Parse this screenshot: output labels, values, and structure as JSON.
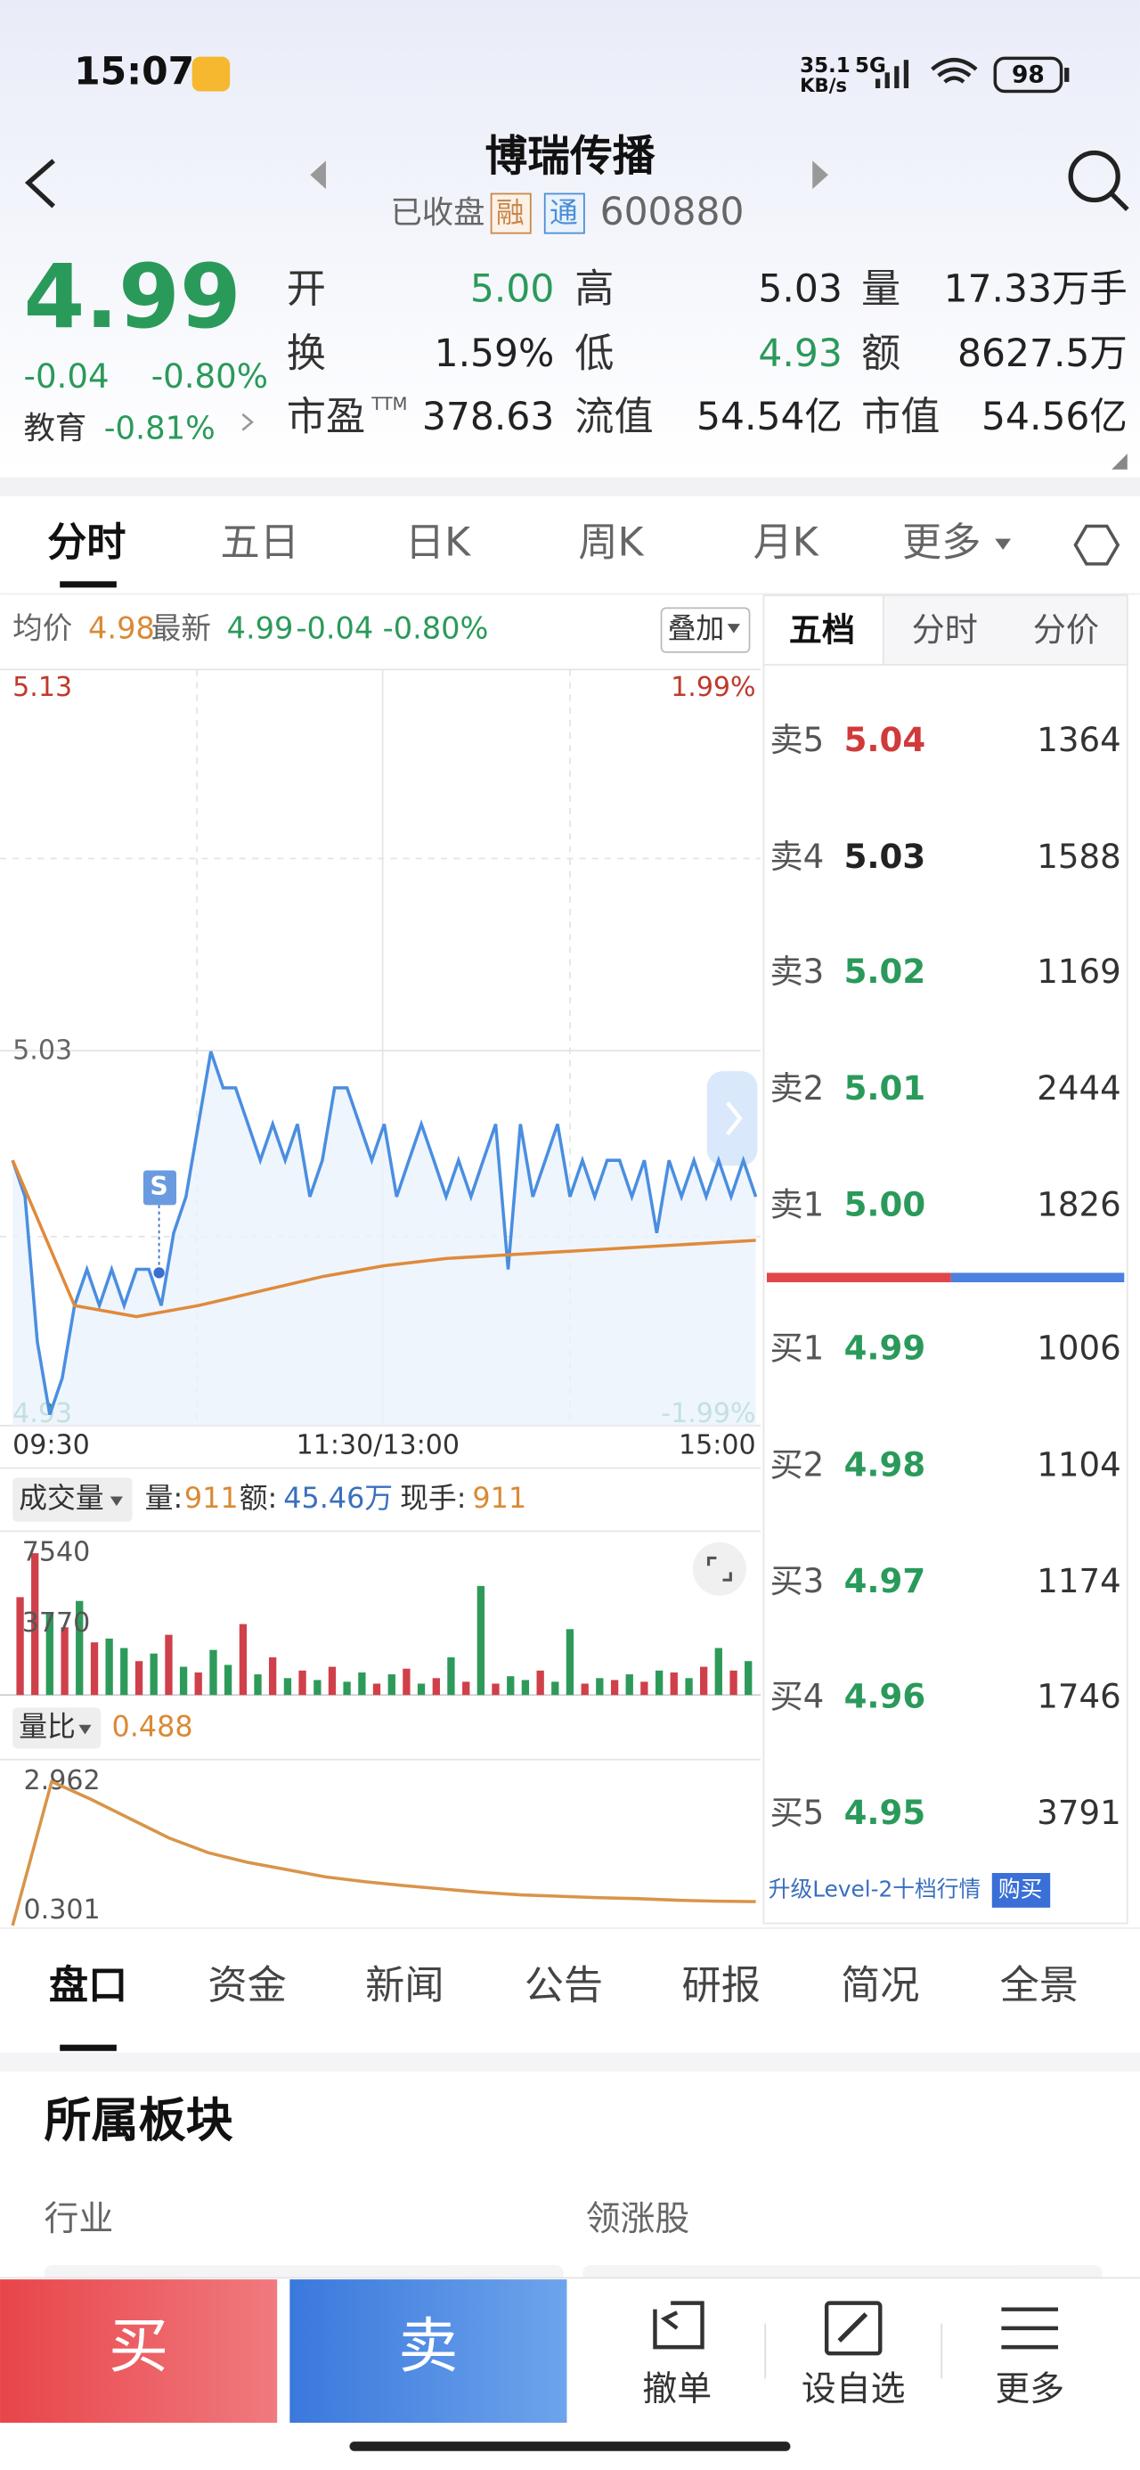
{
  "status_bar": {
    "time": "15:07",
    "speed": "35.1",
    "speed_unit": "KB/s",
    "network": "5G",
    "battery": "98"
  },
  "header": {
    "title": "博瑞传播",
    "status": "已收盘",
    "badges": [
      "融",
      "通"
    ],
    "code": "600880"
  },
  "quote": {
    "price": "4.99",
    "change": "-0.04",
    "change_pct": "-0.80%",
    "sector": "教育",
    "sector_change": "-0.81%",
    "stats": [
      {
        "label": "开",
        "value": "5.00",
        "color": "#2a9a5a"
      },
      {
        "label": "高",
        "value": "5.03",
        "color": "#222222"
      },
      {
        "label": "量",
        "value": "17.33万手",
        "color": "#222222"
      },
      {
        "label": "换",
        "value": "1.59%",
        "color": "#222222"
      },
      {
        "label": "低",
        "value": "4.93",
        "color": "#2a9a5a"
      },
      {
        "label": "额",
        "value": "8627.5万",
        "color": "#222222"
      },
      {
        "label": "市盈",
        "sup": "TTM",
        "value": "378.63",
        "color": "#222222"
      },
      {
        "label": "流值",
        "value": "54.54亿",
        "color": "#222222"
      },
      {
        "label": "市值",
        "value": "54.56亿",
        "color": "#222222"
      }
    ]
  },
  "tabs": [
    "分时",
    "五日",
    "日K",
    "周K",
    "月K",
    "更多"
  ],
  "intraday": {
    "avg_label": "均价",
    "avg": "4.98",
    "latest_label": "最新",
    "latest": "4.99",
    "change": "-0.04",
    "change_pct": "-0.80%",
    "overlay": "叠加",
    "signal": "S",
    "ylim": [
      4.93,
      5.13
    ],
    "yticks": [
      5.13,
      5.03,
      4.93
    ],
    "pct_ticks": [
      "1.99%",
      "-1.99%"
    ],
    "times": [
      "09:30",
      "11:30/13:00",
      "15:00"
    ],
    "price": {
      "color": "#4a8ee0",
      "values": [
        5.0,
        4.99,
        4.95,
        4.93,
        4.94,
        4.96,
        4.97,
        4.96,
        4.97,
        4.96,
        4.97,
        4.97,
        4.96,
        4.98,
        4.99,
        5.01,
        5.03,
        5.02,
        5.02,
        5.01,
        5.0,
        5.01,
        5.0,
        5.01,
        4.99,
        5.0,
        5.02,
        5.02,
        5.01,
        5.0,
        5.01,
        4.99,
        5.0,
        5.01,
        5.0,
        4.99,
        5.0,
        4.99,
        5.0,
        5.01,
        4.97,
        5.01,
        4.99,
        5.0,
        5.01,
        4.99,
        5.0,
        4.99,
        5.0,
        5.0,
        4.99,
        5.0,
        4.98,
        5.0,
        4.99,
        5.0,
        4.99,
        5.0,
        4.99,
        5.0,
        4.99
      ]
    },
    "average": {
      "color": "#e08a3a",
      "values": [
        5.0,
        4.96,
        4.957,
        4.96,
        4.964,
        4.968,
        4.971,
        4.973,
        4.974,
        4.975,
        4.976,
        4.977,
        4.978
      ]
    }
  },
  "volume": {
    "label": "成交量",
    "vol_label": "量:",
    "vol": "911",
    "amount_label": "额:",
    "amount": "45.46万",
    "hand_label": "现手:",
    "hand": "911",
    "ylim": [
      0,
      7540
    ],
    "yticks": [
      7540,
      3770
    ],
    "values": [
      5200,
      7540,
      4300,
      3600,
      5000,
      2800,
      3000,
      2500,
      1800,
      2200,
      3200,
      1500,
      1200,
      2400,
      1600,
      3770,
      1100,
      2000,
      900,
      1300,
      800,
      1500,
      700,
      1200,
      600,
      1100,
      1400,
      600,
      900,
      2000,
      700,
      5800,
      600,
      1000,
      800,
      1300,
      700,
      3500,
      600,
      900,
      800,
      1100,
      700,
      1300,
      1200,
      900,
      1500,
      2500,
      1300,
      1800
    ],
    "colors": [
      "#d0404a",
      "#d0404a",
      "#2e9a5a",
      "#d0404a",
      "#2e9a5a",
      "#d0404a",
      "#2e9a5a",
      "#2e9a5a",
      "#d0404a",
      "#2e9a5a",
      "#d0404a",
      "#2e9a5a",
      "#d0404a",
      "#2e9a5a",
      "#2e9a5a",
      "#d0404a",
      "#2e9a5a",
      "#d0404a",
      "#2e9a5a",
      "#d0404a",
      "#2e9a5a",
      "#d0404a",
      "#2e9a5a",
      "#2e9a5a",
      "#d0404a",
      "#2e9a5a",
      "#d0404a",
      "#2e9a5a",
      "#d0404a",
      "#2e9a5a",
      "#d0404a",
      "#2e9a5a",
      "#d0404a",
      "#2e9a5a",
      "#2e9a5a",
      "#d0404a",
      "#2e9a5a",
      "#2e9a5a",
      "#d0404a",
      "#2e9a5a",
      "#d0404a",
      "#2e9a5a",
      "#d0404a",
      "#2e9a5a",
      "#d0404a",
      "#2e9a5a",
      "#d0404a",
      "#2e9a5a",
      "#d0404a",
      "#2e9a5a"
    ]
  },
  "ratio": {
    "label": "量比",
    "value": "0.488",
    "ylim": [
      0.301,
      2.962
    ],
    "yticks": [
      2.962,
      0.301
    ],
    "color": "#d9944a",
    "values": [
      0,
      2.962,
      2.6,
      2.2,
      1.8,
      1.5,
      1.3,
      1.15,
      1.0,
      0.9,
      0.82,
      0.75,
      0.68,
      0.63,
      0.6,
      0.57,
      0.55,
      0.52,
      0.5,
      0.488
    ]
  },
  "order_book": {
    "tabs": [
      "五档",
      "分时",
      "分价"
    ],
    "asks": [
      {
        "label": "卖5",
        "price": "5.04",
        "volume": "1364",
        "color": "#d03a3a"
      },
      {
        "label": "卖4",
        "price": "5.03",
        "volume": "1588",
        "color": "#222222"
      },
      {
        "label": "卖3",
        "price": "5.02",
        "volume": "1169",
        "color": "#2a9a5a"
      },
      {
        "label": "卖2",
        "price": "5.01",
        "volume": "2444",
        "color": "#2a9a5a"
      },
      {
        "label": "卖1",
        "price": "5.00",
        "volume": "1826",
        "color": "#2a9a5a"
      }
    ],
    "bids": [
      {
        "label": "买1",
        "price": "4.99",
        "volume": "1006",
        "color": "#2a9a5a"
      },
      {
        "label": "买2",
        "price": "4.98",
        "volume": "1104",
        "color": "#2a9a5a"
      },
      {
        "label": "买3",
        "price": "4.97",
        "volume": "1174",
        "color": "#2a9a5a"
      },
      {
        "label": "买4",
        "price": "4.96",
        "volume": "1746",
        "color": "#2a9a5a"
      },
      {
        "label": "买5",
        "price": "4.95",
        "volume": "3791",
        "color": "#2a9a5a"
      }
    ],
    "upgrade": "升级Level-2十档行情",
    "buy": "购买"
  },
  "detail_tabs": [
    "盘口",
    "资金",
    "新闻",
    "公告",
    "研报",
    "简况",
    "全景"
  ],
  "section": {
    "title": "所属板块",
    "industry": "行业",
    "leader": "领涨股"
  },
  "bottom_bar": {
    "buy": "买",
    "sell": "卖",
    "cancel": "撤单",
    "watch": "设自选",
    "more": "更多"
  }
}
